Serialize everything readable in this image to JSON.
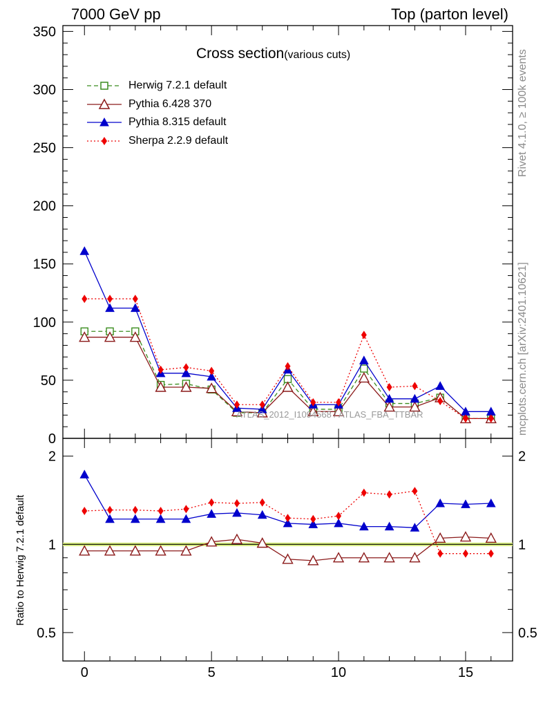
{
  "header": {
    "left": "7000 GeV pp",
    "right": "Top (parton level)"
  },
  "side_labels": {
    "rivet": "Rivet 4.1.0, ≥ 100k events",
    "mcplots": "mcplots.cern.ch [arXiv:2401.10621]"
  },
  "watermark": "ATLAS_2012_I1094568 / ATLAS_FBA_TTBAR",
  "chart_data": {
    "type": "line",
    "title": "Cross section",
    "subtitle": "(various cuts)",
    "x": [
      0,
      1,
      2,
      3,
      4,
      5,
      6,
      7,
      8,
      9,
      10,
      11,
      12,
      13,
      14,
      15,
      16
    ],
    "xlim": [
      -0.85,
      16.85
    ],
    "xticks": [
      "0",
      "5",
      "10",
      "15"
    ],
    "main": {
      "ylim": [
        0,
        355
      ],
      "yticks": [
        "0",
        "50",
        "100",
        "150",
        "200",
        "250",
        "300",
        "350"
      ]
    },
    "ratio": {
      "ylabel": "Ratio to Herwig 7.2.1 default",
      "ylim": [
        0.4,
        2.3
      ],
      "yscale": "log",
      "yticks": [
        "0.5",
        "1",
        "2"
      ],
      "reference": 1
    },
    "series": [
      {
        "name": "Herwig 7.2.1 default",
        "color": "#3a8c1e",
        "marker": "open-square",
        "dash": "6,4",
        "values": [
          92,
          92,
          92,
          46,
          47,
          42,
          22,
          22,
          51,
          25,
          25,
          60,
          30,
          30,
          35,
          17,
          17
        ],
        "ratio": [
          1.0,
          1.0,
          1.0,
          1.0,
          1.0,
          1.0,
          1.0,
          1.0,
          1.0,
          1.0,
          1.0,
          1.0,
          1.0,
          1.0,
          1.0,
          1.0,
          1.0
        ]
      },
      {
        "name": "Pythia 6.428 370",
        "color": "#8b1a1a",
        "marker": "open-triangle",
        "dash": "",
        "values": [
          87,
          87,
          87,
          44,
          44,
          43,
          23,
          22,
          44,
          23,
          23,
          52,
          27,
          27,
          35,
          17,
          17
        ],
        "ratio": [
          0.95,
          0.95,
          0.95,
          0.95,
          0.95,
          1.02,
          1.04,
          1.01,
          0.89,
          0.88,
          0.9,
          0.9,
          0.9,
          0.9,
          1.05,
          1.06,
          1.05
        ]
      },
      {
        "name": "Pythia 8.315 default",
        "color": "#0000cc",
        "marker": "filled-triangle",
        "dash": "",
        "values": [
          161,
          112,
          112,
          56,
          56,
          53,
          26,
          25,
          59,
          29,
          29,
          67,
          34,
          34,
          45,
          23,
          23
        ],
        "ratio": [
          1.73,
          1.22,
          1.22,
          1.22,
          1.22,
          1.27,
          1.28,
          1.26,
          1.18,
          1.17,
          1.18,
          1.15,
          1.15,
          1.14,
          1.38,
          1.37,
          1.38
        ]
      },
      {
        "name": "Sherpa 2.2.9 default",
        "color": "#ee0000",
        "marker": "filled-diamond",
        "dash": "2,3",
        "values": [
          120,
          120,
          120,
          59,
          61,
          58,
          29,
          29,
          62,
          31,
          31,
          89,
          44,
          45,
          32,
          17,
          17
        ],
        "ratio": [
          1.3,
          1.31,
          1.31,
          1.3,
          1.32,
          1.39,
          1.38,
          1.39,
          1.23,
          1.22,
          1.25,
          1.5,
          1.48,
          1.52,
          0.93,
          0.93,
          0.93
        ]
      }
    ]
  }
}
